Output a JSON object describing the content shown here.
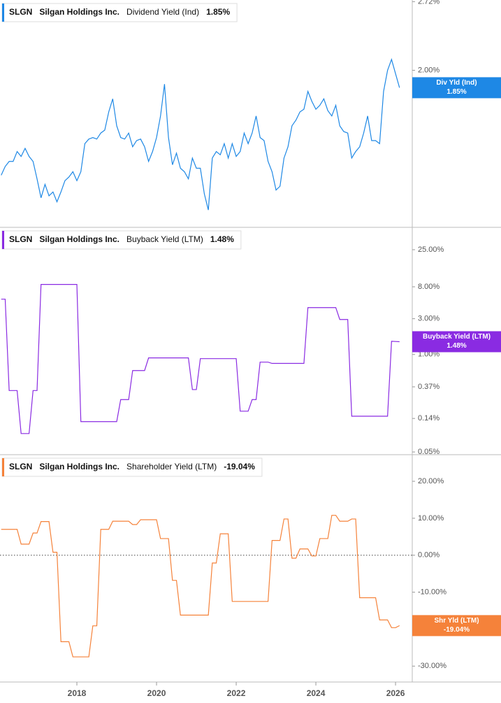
{
  "chart_data": [
    {
      "type": "line",
      "ticker": "SLGN",
      "company": "Silgan Holdings Inc.",
      "title": "Dividend Yield (Ind)",
      "badge": "Div Yld (Ind)",
      "current": {
        "value": 1.85,
        "label": "1.85%"
      },
      "color": "#1e88e5",
      "log_scale": true,
      "xlim": [
        2016.07,
        2026.42
      ],
      "ylim": [
        0.99,
        2.74
      ],
      "yticks": [
        {
          "value": 2.72,
          "label": "2.72%"
        },
        {
          "value": 2.0,
          "label": "2.00%"
        }
      ],
      "x": [
        2016.1,
        2016.2,
        2016.3,
        2016.4,
        2016.5,
        2016.6,
        2016.7,
        2016.8,
        2016.9,
        2017.0,
        2017.1,
        2017.2,
        2017.3,
        2017.4,
        2017.5,
        2017.6,
        2017.7,
        2017.8,
        2017.9,
        2018.0,
        2018.1,
        2018.2,
        2018.3,
        2018.4,
        2018.5,
        2018.6,
        2018.7,
        2018.8,
        2018.9,
        2019.0,
        2019.1,
        2019.2,
        2019.3,
        2019.4,
        2019.5,
        2019.6,
        2019.7,
        2019.8,
        2019.9,
        2020.0,
        2020.1,
        2020.2,
        2020.3,
        2020.4,
        2020.5,
        2020.6,
        2020.7,
        2020.8,
        2020.9,
        2021.0,
        2021.1,
        2021.2,
        2021.3,
        2021.4,
        2021.5,
        2021.6,
        2021.7,
        2021.8,
        2021.9,
        2022.0,
        2022.1,
        2022.2,
        2022.3,
        2022.4,
        2022.5,
        2022.6,
        2022.7,
        2022.8,
        2022.9,
        2023.0,
        2023.1,
        2023.2,
        2023.3,
        2023.4,
        2023.5,
        2023.6,
        2023.7,
        2023.8,
        2023.9,
        2024.0,
        2024.1,
        2024.2,
        2024.3,
        2024.4,
        2024.5,
        2024.6,
        2024.7,
        2024.8,
        2024.9,
        2025.0,
        2025.1,
        2025.2,
        2025.3,
        2025.4,
        2025.5,
        2025.6,
        2025.7,
        2025.8,
        2025.9,
        2026.0,
        2026.1
      ],
      "values": [
        1.25,
        1.3,
        1.33,
        1.33,
        1.39,
        1.36,
        1.41,
        1.36,
        1.33,
        1.23,
        1.13,
        1.2,
        1.14,
        1.16,
        1.11,
        1.16,
        1.22,
        1.24,
        1.27,
        1.22,
        1.27,
        1.44,
        1.47,
        1.48,
        1.47,
        1.51,
        1.53,
        1.66,
        1.76,
        1.56,
        1.48,
        1.47,
        1.51,
        1.42,
        1.46,
        1.47,
        1.42,
        1.33,
        1.39,
        1.48,
        1.63,
        1.88,
        1.48,
        1.31,
        1.38,
        1.29,
        1.27,
        1.23,
        1.35,
        1.29,
        1.29,
        1.15,
        1.07,
        1.35,
        1.39,
        1.37,
        1.44,
        1.35,
        1.44,
        1.36,
        1.39,
        1.51,
        1.44,
        1.51,
        1.63,
        1.48,
        1.46,
        1.33,
        1.27,
        1.17,
        1.19,
        1.35,
        1.42,
        1.56,
        1.6,
        1.66,
        1.68,
        1.82,
        1.74,
        1.68,
        1.71,
        1.76,
        1.67,
        1.63,
        1.71,
        1.56,
        1.52,
        1.51,
        1.35,
        1.39,
        1.42,
        1.51,
        1.63,
        1.46,
        1.46,
        1.44,
        1.82,
        2.0,
        2.1,
        1.97,
        1.85
      ]
    },
    {
      "type": "line",
      "ticker": "SLGN",
      "company": "Silgan Holdings Inc.",
      "title": "Buyback Yield (LTM)",
      "badge": "Buyback Yield (LTM)",
      "current": {
        "value": 1.48,
        "label": "1.48%"
      },
      "color": "#8a2be2",
      "log_scale": true,
      "xlim": [
        2016.07,
        2026.42
      ],
      "ylim": [
        0.046,
        49.7
      ],
      "yticks": [
        {
          "value": 25,
          "label": "25.00%"
        },
        {
          "value": 8,
          "label": "8.00%"
        },
        {
          "value": 3,
          "label": "3.00%"
        },
        {
          "value": 1,
          "label": "1.00%"
        },
        {
          "value": 0.37,
          "label": "0.37%"
        },
        {
          "value": 0.14,
          "label": "0.14%"
        },
        {
          "value": 0.05,
          "label": "0.05%"
        }
      ],
      "x": [
        2016.1,
        2016.2,
        2016.3,
        2016.4,
        2016.5,
        2016.6,
        2016.7,
        2016.8,
        2016.9,
        2017.0,
        2017.1,
        2017.2,
        2017.3,
        2017.4,
        2017.5,
        2017.6,
        2017.7,
        2017.8,
        2017.9,
        2018.0,
        2018.1,
        2018.2,
        2018.3,
        2018.4,
        2018.5,
        2018.6,
        2018.7,
        2018.8,
        2018.9,
        2019.0,
        2019.1,
        2019.2,
        2019.3,
        2019.4,
        2019.5,
        2019.6,
        2019.7,
        2019.8,
        2019.9,
        2020.0,
        2020.1,
        2020.2,
        2020.3,
        2020.4,
        2020.5,
        2020.6,
        2020.7,
        2020.8,
        2020.9,
        2021.0,
        2021.1,
        2021.2,
        2021.3,
        2021.4,
        2021.5,
        2021.6,
        2021.7,
        2021.8,
        2021.9,
        2022.0,
        2022.1,
        2022.2,
        2022.3,
        2022.4,
        2022.5,
        2022.6,
        2022.7,
        2022.8,
        2022.9,
        2023.0,
        2023.1,
        2023.2,
        2023.3,
        2023.4,
        2023.5,
        2023.6,
        2023.7,
        2023.8,
        2023.9,
        2024.0,
        2024.1,
        2024.2,
        2024.3,
        2024.4,
        2024.5,
        2024.6,
        2024.7,
        2024.8,
        2024.9,
        2025.0,
        2025.1,
        2025.2,
        2025.3,
        2025.4,
        2025.5,
        2025.6,
        2025.7,
        2025.8,
        2025.9,
        2026.0,
        2026.1
      ],
      "values": [
        5.47,
        5.47,
        0.33,
        0.33,
        0.33,
        0.088,
        0.088,
        0.088,
        0.33,
        0.33,
        8.6,
        8.6,
        8.6,
        8.6,
        8.6,
        8.6,
        8.6,
        8.6,
        8.6,
        8.6,
        0.127,
        0.127,
        0.127,
        0.127,
        0.127,
        0.127,
        0.127,
        0.127,
        0.127,
        0.127,
        0.25,
        0.25,
        0.25,
        0.61,
        0.61,
        0.61,
        0.61,
        0.9,
        0.9,
        0.9,
        0.9,
        0.9,
        0.9,
        0.9,
        0.9,
        0.9,
        0.9,
        0.9,
        0.34,
        0.34,
        0.88,
        0.88,
        0.88,
        0.88,
        0.88,
        0.88,
        0.88,
        0.88,
        0.88,
        0.88,
        0.175,
        0.175,
        0.175,
        0.25,
        0.25,
        0.79,
        0.79,
        0.79,
        0.76,
        0.76,
        0.76,
        0.76,
        0.76,
        0.76,
        0.76,
        0.76,
        0.76,
        4.22,
        4.22,
        4.22,
        4.22,
        4.22,
        4.22,
        4.22,
        4.22,
        2.93,
        2.93,
        2.93,
        0.15,
        0.15,
        0.15,
        0.15,
        0.15,
        0.15,
        0.15,
        0.15,
        0.15,
        0.15,
        1.5,
        1.49,
        1.48
      ]
    },
    {
      "type": "line",
      "ticker": "SLGN",
      "company": "Silgan Holdings Inc.",
      "title": "Shareholder Yield (LTM)",
      "badge": "Shr Yld (LTM)",
      "current": {
        "value": -19.04,
        "label": "-19.04%"
      },
      "color": "#f5823a",
      "log_scale": false,
      "zero_line": true,
      "xlim": [
        2016.07,
        2026.42
      ],
      "ylim": [
        -34.3,
        27.2
      ],
      "yticks": [
        {
          "value": 20,
          "label": "20.00%"
        },
        {
          "value": 10,
          "label": "10.00%"
        },
        {
          "value": 0,
          "label": "0.00%"
        },
        {
          "value": -10,
          "label": "-10.00%"
        },
        {
          "value": -20,
          "label": "-20.00%"
        },
        {
          "value": -30,
          "label": "-30.00%"
        }
      ],
      "xticks": [
        2018,
        2020,
        2022,
        2024,
        2026
      ],
      "x": [
        2016.1,
        2016.2,
        2016.3,
        2016.4,
        2016.5,
        2016.6,
        2016.7,
        2016.8,
        2016.9,
        2017.0,
        2017.1,
        2017.2,
        2017.3,
        2017.4,
        2017.5,
        2017.6,
        2017.7,
        2017.8,
        2017.9,
        2018.0,
        2018.1,
        2018.2,
        2018.3,
        2018.4,
        2018.5,
        2018.6,
        2018.7,
        2018.8,
        2018.9,
        2019.0,
        2019.1,
        2019.2,
        2019.3,
        2019.4,
        2019.5,
        2019.6,
        2019.7,
        2019.8,
        2019.9,
        2020.0,
        2020.1,
        2020.2,
        2020.3,
        2020.4,
        2020.5,
        2020.6,
        2020.7,
        2020.8,
        2020.9,
        2021.0,
        2021.1,
        2021.2,
        2021.3,
        2021.4,
        2021.5,
        2021.6,
        2021.7,
        2021.8,
        2021.9,
        2022.0,
        2022.1,
        2022.2,
        2022.3,
        2022.4,
        2022.5,
        2022.6,
        2022.7,
        2022.8,
        2022.9,
        2023.0,
        2023.1,
        2023.2,
        2023.3,
        2023.4,
        2023.5,
        2023.6,
        2023.7,
        2023.8,
        2023.9,
        2024.0,
        2024.1,
        2024.2,
        2024.3,
        2024.4,
        2024.5,
        2024.6,
        2024.7,
        2024.8,
        2024.9,
        2025.0,
        2025.1,
        2025.2,
        2025.3,
        2025.4,
        2025.5,
        2025.6,
        2025.7,
        2025.8,
        2025.9,
        2026.0,
        2026.1
      ],
      "values": [
        7,
        7,
        7,
        7,
        7,
        3,
        3,
        3,
        6,
        6,
        9.1,
        9.1,
        9.1,
        0.8,
        0.8,
        -23.4,
        -23.4,
        -23.4,
        -27.5,
        -27.5,
        -27.5,
        -27.5,
        -27.5,
        -19.1,
        -19.1,
        7,
        7,
        7,
        9.2,
        9.2,
        9.2,
        9.2,
        9.2,
        8.3,
        8.3,
        9.6,
        9.6,
        9.6,
        9.6,
        9.6,
        4.5,
        4.5,
        4.5,
        -6.8,
        -6.8,
        -16.2,
        -16.2,
        -16.2,
        -16.2,
        -16.2,
        -16.2,
        -16.2,
        -16.2,
        -2.1,
        -2.1,
        5.8,
        5.8,
        5.8,
        -12.5,
        -12.5,
        -12.5,
        -12.5,
        -12.5,
        -12.5,
        -12.5,
        -12.5,
        -12.5,
        -12.5,
        4,
        4,
        4,
        9.8,
        9.8,
        -0.8,
        -0.8,
        1.7,
        1.7,
        1.7,
        -0.2,
        -0.2,
        4.5,
        4.5,
        4.5,
        10.8,
        10.8,
        9.2,
        9.2,
        9.2,
        9.8,
        9.8,
        -11.5,
        -11.5,
        -11.5,
        -11.5,
        -11.5,
        -17.5,
        -17.5,
        -17.5,
        -19.6,
        -19.6,
        -19.04
      ]
    }
  ]
}
